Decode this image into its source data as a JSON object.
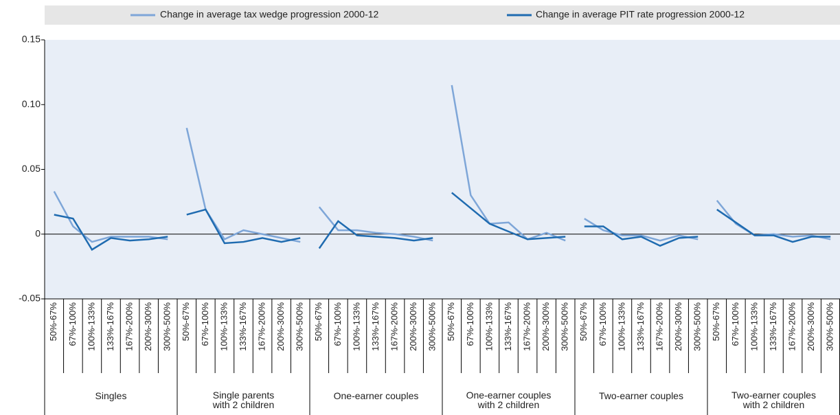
{
  "chart_data": {
    "type": "line",
    "legend": "top",
    "groups": [
      {
        "name": "Singles",
        "categories": [
          "50%-67%",
          "67%-100%",
          "100%-133%",
          "133%-167%",
          "167%-200%",
          "200%-300%",
          "300%-500%"
        ]
      },
      {
        "name": "Single parents\nwith 2 children",
        "categories": [
          "50%-67%",
          "67%-100%",
          "100%-133%",
          "133%-167%",
          "167%-200%",
          "200%-300%",
          "300%-500%"
        ]
      },
      {
        "name": "One-earner couples",
        "categories": [
          "50%-67%",
          "67%-100%",
          "100%-133%",
          "133%-167%",
          "167%-200%",
          "200%-300%",
          "300%-500%"
        ]
      },
      {
        "name": "One-earner couples\nwith 2 children",
        "categories": [
          "50%-67%",
          "67%-100%",
          "100%-133%",
          "133%-167%",
          "167%-200%",
          "200%-300%",
          "300%-500%"
        ]
      },
      {
        "name": "Two-earner couples",
        "categories": [
          "50%-67%",
          "67%-100%",
          "100%-133%",
          "133%-167%",
          "167%-200%",
          "200%-300%",
          "300%-500%"
        ]
      },
      {
        "name": "Two-earner couples\nwith 2 children",
        "categories": [
          "50%-67%",
          "67%-100%",
          "100%-133%",
          "133%-167%",
          "167%-200%",
          "200%-300%",
          "300%-500%"
        ]
      }
    ],
    "series": [
      {
        "name": "Change in average tax wedge progression 2000-12",
        "color": "#7ea6d8",
        "values": [
          [
            0.033,
            0.006,
            -0.006,
            -0.002,
            -0.002,
            -0.002,
            -0.004
          ],
          [
            0.082,
            0.019,
            -0.004,
            0.003,
            0.0,
            -0.003,
            -0.006
          ],
          [
            0.021,
            0.003,
            0.003,
            0.001,
            0.0,
            -0.002,
            -0.005
          ],
          [
            0.115,
            0.03,
            0.008,
            0.009,
            -0.004,
            0.001,
            -0.005
          ],
          [
            0.012,
            0.003,
            -0.001,
            -0.001,
            -0.005,
            -0.001,
            -0.004
          ],
          [
            0.026,
            0.008,
            -0.001,
            0.0,
            -0.002,
            -0.001,
            -0.004
          ]
        ]
      },
      {
        "name": "Change in average PIT rate progression 2000-12",
        "color": "#1f6bb0",
        "values": [
          [
            0.015,
            0.012,
            -0.012,
            -0.003,
            -0.005,
            -0.004,
            -0.002
          ],
          [
            0.015,
            0.019,
            -0.007,
            -0.006,
            -0.003,
            -0.006,
            -0.003
          ],
          [
            -0.011,
            0.01,
            -0.001,
            -0.002,
            -0.003,
            -0.005,
            -0.003
          ],
          [
            0.032,
            0.02,
            0.008,
            0.002,
            -0.004,
            -0.003,
            -0.002
          ],
          [
            0.006,
            0.006,
            -0.004,
            -0.002,
            -0.009,
            -0.003,
            -0.002
          ],
          [
            0.019,
            0.009,
            -0.001,
            -0.001,
            -0.006,
            -0.002,
            -0.002
          ]
        ]
      }
    ],
    "ylim": [
      -0.05,
      0.15
    ],
    "yticks": [
      -0.05,
      0,
      0.05,
      {
        "value": 0.1,
        "label": "0.10"
      },
      0.15
    ]
  }
}
